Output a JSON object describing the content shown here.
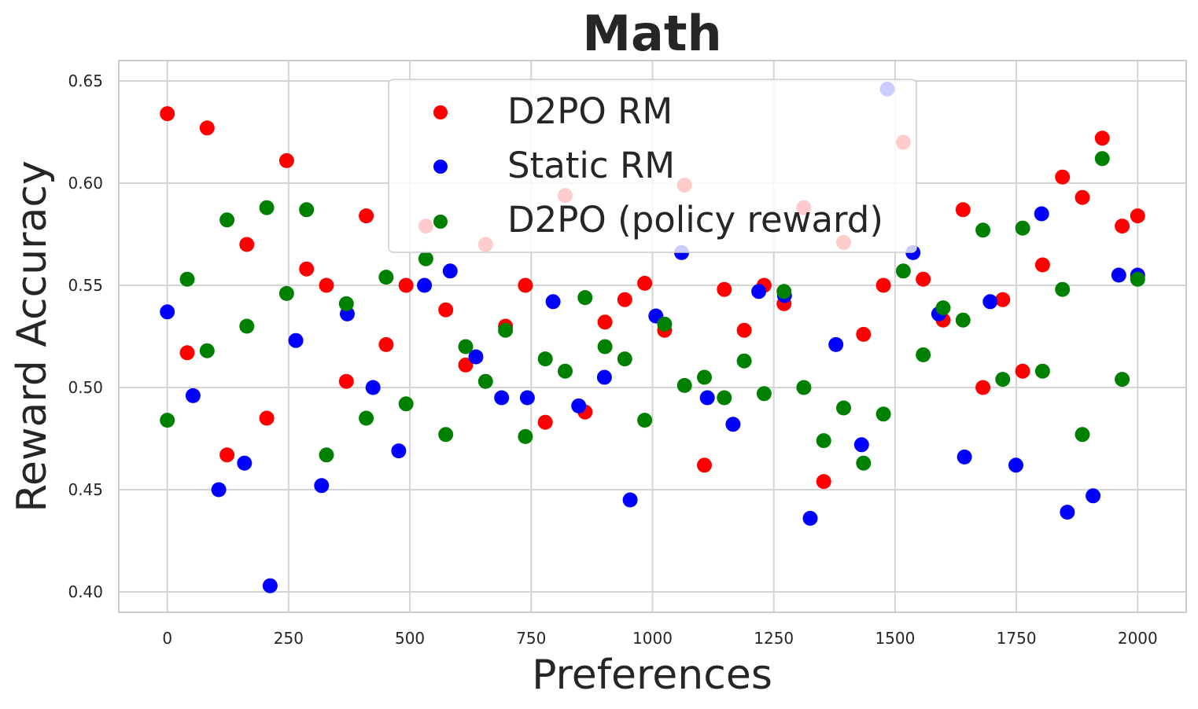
{
  "chart_data": {
    "type": "scatter",
    "title": "Math",
    "xlabel": "Preferences",
    "ylabel": "Reward Accuracy",
    "xlim": [
      -100,
      2100
    ],
    "ylim": [
      0.39,
      0.66
    ],
    "xticks": [
      0,
      250,
      500,
      750,
      1000,
      1250,
      1500,
      1750,
      2000
    ],
    "xtick_labels": [
      "0",
      "250",
      "500",
      "750",
      "1000",
      "1250",
      "1500",
      "1750",
      "2000"
    ],
    "yticks": [
      0.4,
      0.45,
      0.5,
      0.55,
      0.6,
      0.65
    ],
    "ytick_labels": [
      "0.40",
      "0.45",
      "0.50",
      "0.55",
      "0.60",
      "0.65"
    ],
    "grid": true,
    "legend_position": "top-center",
    "series": [
      {
        "name": "D2PO RM",
        "color": "#ff0000",
        "points": [
          [
            0,
            0.634
          ],
          [
            41,
            0.517
          ],
          [
            82,
            0.627
          ],
          [
            123,
            0.467
          ],
          [
            164,
            0.57
          ],
          [
            205,
            0.485
          ],
          [
            246,
            0.611
          ],
          [
            287,
            0.558
          ],
          [
            328,
            0.55
          ],
          [
            369,
            0.503
          ],
          [
            410,
            0.584
          ],
          [
            451,
            0.521
          ],
          [
            492,
            0.55
          ],
          [
            533,
            0.579
          ],
          [
            574,
            0.538
          ],
          [
            615,
            0.511
          ],
          [
            656,
            0.57
          ],
          [
            697,
            0.53
          ],
          [
            738,
            0.55
          ],
          [
            779,
            0.483
          ],
          [
            820,
            0.594
          ],
          [
            861,
            0.488
          ],
          [
            902,
            0.532
          ],
          [
            943,
            0.543
          ],
          [
            984,
            0.551
          ],
          [
            1025,
            0.528
          ],
          [
            1066,
            0.599
          ],
          [
            1107,
            0.462
          ],
          [
            1148,
            0.548
          ],
          [
            1189,
            0.528
          ],
          [
            1230,
            0.55
          ],
          [
            1271,
            0.541
          ],
          [
            1312,
            0.588
          ],
          [
            1353,
            0.454
          ],
          [
            1394,
            0.571
          ],
          [
            1435,
            0.526
          ],
          [
            1476,
            0.55
          ],
          [
            1517,
            0.62
          ],
          [
            1558,
            0.553
          ],
          [
            1599,
            0.533
          ],
          [
            1640,
            0.587
          ],
          [
            1681,
            0.5
          ],
          [
            1722,
            0.543
          ],
          [
            1763,
            0.508
          ],
          [
            1804,
            0.56
          ],
          [
            1845,
            0.603
          ],
          [
            1886,
            0.593
          ],
          [
            1927,
            0.622
          ],
          [
            1968,
            0.579
          ],
          [
            2000,
            0.584
          ]
        ]
      },
      {
        "name": "Static RM",
        "color": "#0000ff",
        "points": [
          [
            0,
            0.537
          ],
          [
            53,
            0.496
          ],
          [
            106,
            0.45
          ],
          [
            159,
            0.463
          ],
          [
            212,
            0.403
          ],
          [
            265,
            0.523
          ],
          [
            318,
            0.452
          ],
          [
            371,
            0.536
          ],
          [
            424,
            0.5
          ],
          [
            477,
            0.469
          ],
          [
            530,
            0.55
          ],
          [
            583,
            0.557
          ],
          [
            636,
            0.515
          ],
          [
            689,
            0.495
          ],
          [
            742,
            0.495
          ],
          [
            795,
            0.542
          ],
          [
            848,
            0.491
          ],
          [
            901,
            0.505
          ],
          [
            954,
            0.445
          ],
          [
            1007,
            0.535
          ],
          [
            1060,
            0.566
          ],
          [
            1113,
            0.495
          ],
          [
            1166,
            0.482
          ],
          [
            1219,
            0.547
          ],
          [
            1272,
            0.545
          ],
          [
            1325,
            0.436
          ],
          [
            1378,
            0.521
          ],
          [
            1431,
            0.472
          ],
          [
            1484,
            0.646
          ],
          [
            1537,
            0.566
          ],
          [
            1590,
            0.536
          ],
          [
            1643,
            0.466
          ],
          [
            1696,
            0.542
          ],
          [
            1749,
            0.462
          ],
          [
            1802,
            0.585
          ],
          [
            1855,
            0.439
          ],
          [
            1908,
            0.447
          ],
          [
            1961,
            0.555
          ],
          [
            2000,
            0.555
          ]
        ]
      },
      {
        "name": "D2PO (policy reward)",
        "color": "#008000",
        "points": [
          [
            0,
            0.484
          ],
          [
            41,
            0.553
          ],
          [
            82,
            0.518
          ],
          [
            123,
            0.582
          ],
          [
            164,
            0.53
          ],
          [
            205,
            0.588
          ],
          [
            246,
            0.546
          ],
          [
            287,
            0.587
          ],
          [
            328,
            0.467
          ],
          [
            369,
            0.541
          ],
          [
            410,
            0.485
          ],
          [
            451,
            0.554
          ],
          [
            492,
            0.492
          ],
          [
            533,
            0.563
          ],
          [
            574,
            0.477
          ],
          [
            615,
            0.52
          ],
          [
            656,
            0.503
          ],
          [
            697,
            0.528
          ],
          [
            738,
            0.476
          ],
          [
            779,
            0.514
          ],
          [
            820,
            0.508
          ],
          [
            861,
            0.544
          ],
          [
            902,
            0.52
          ],
          [
            943,
            0.514
          ],
          [
            984,
            0.484
          ],
          [
            1025,
            0.531
          ],
          [
            1066,
            0.501
          ],
          [
            1107,
            0.505
          ],
          [
            1148,
            0.495
          ],
          [
            1189,
            0.513
          ],
          [
            1230,
            0.497
          ],
          [
            1271,
            0.547
          ],
          [
            1312,
            0.5
          ],
          [
            1353,
            0.474
          ],
          [
            1394,
            0.49
          ],
          [
            1435,
            0.463
          ],
          [
            1476,
            0.487
          ],
          [
            1517,
            0.557
          ],
          [
            1558,
            0.516
          ],
          [
            1599,
            0.539
          ],
          [
            1640,
            0.533
          ],
          [
            1681,
            0.577
          ],
          [
            1722,
            0.504
          ],
          [
            1763,
            0.578
          ],
          [
            1804,
            0.508
          ],
          [
            1845,
            0.548
          ],
          [
            1886,
            0.477
          ],
          [
            1927,
            0.612
          ],
          [
            1968,
            0.504
          ],
          [
            2000,
            0.553
          ]
        ]
      }
    ]
  }
}
